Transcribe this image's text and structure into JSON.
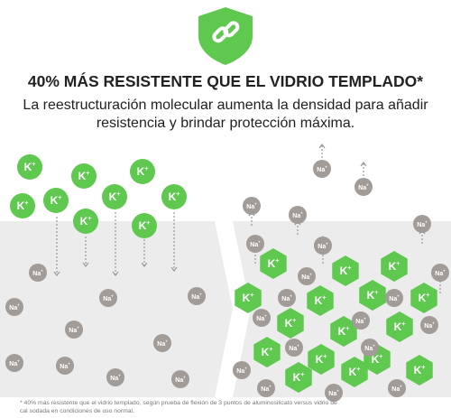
{
  "header": {
    "title": "40% MÁS RESISTENTE QUE EL VIDRIO TEMPLADO*",
    "subtitle": [
      "La reestructuración molecular aumenta la densidad para añadir",
      "resistencia y brindar protección máxima."
    ]
  },
  "ions": {
    "potassium": {
      "symbol": "K",
      "charge": "+"
    },
    "sodium": {
      "symbol": "Na",
      "charge": "+"
    }
  },
  "footnote": [
    "* 40% más resistente que el vidrio templado, según prueba de flexión de 3 puntos de aluminosilicato versus vidrio de",
    "cal sodada en condiciones de uso normal."
  ]
}
